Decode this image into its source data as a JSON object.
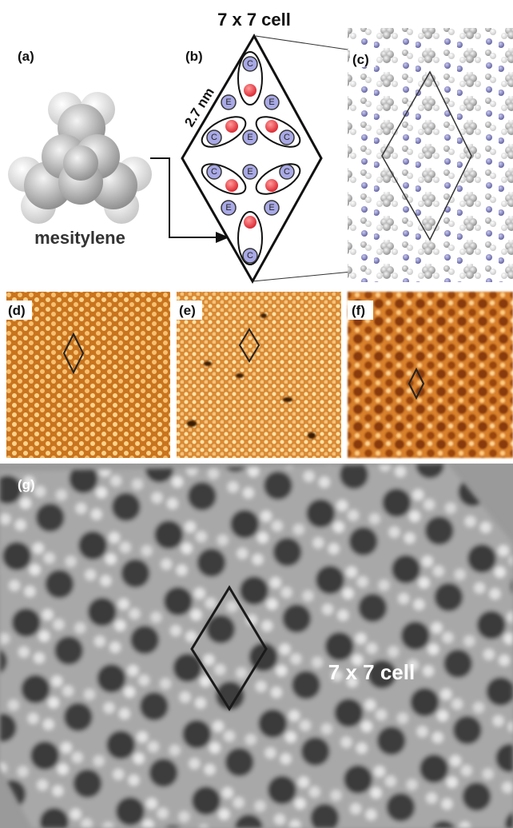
{
  "panels": {
    "a": {
      "label": "(a)",
      "caption": "mesitylene"
    },
    "b": {
      "label": "(b)",
      "title": "7 x 7 cell",
      "dimension": "2.7 nm",
      "site_labels": [
        "C",
        "E",
        "E",
        "C",
        "E",
        "C",
        "C",
        "E",
        "C",
        "E",
        "E",
        "C"
      ]
    },
    "c": {
      "label": "(c)"
    },
    "d": {
      "label": "(d)"
    },
    "e": {
      "label": "(e)"
    },
    "f": {
      "label": "(f)"
    },
    "g": {
      "label": "(g)",
      "annotation": "7 x 7 cell"
    }
  }
}
